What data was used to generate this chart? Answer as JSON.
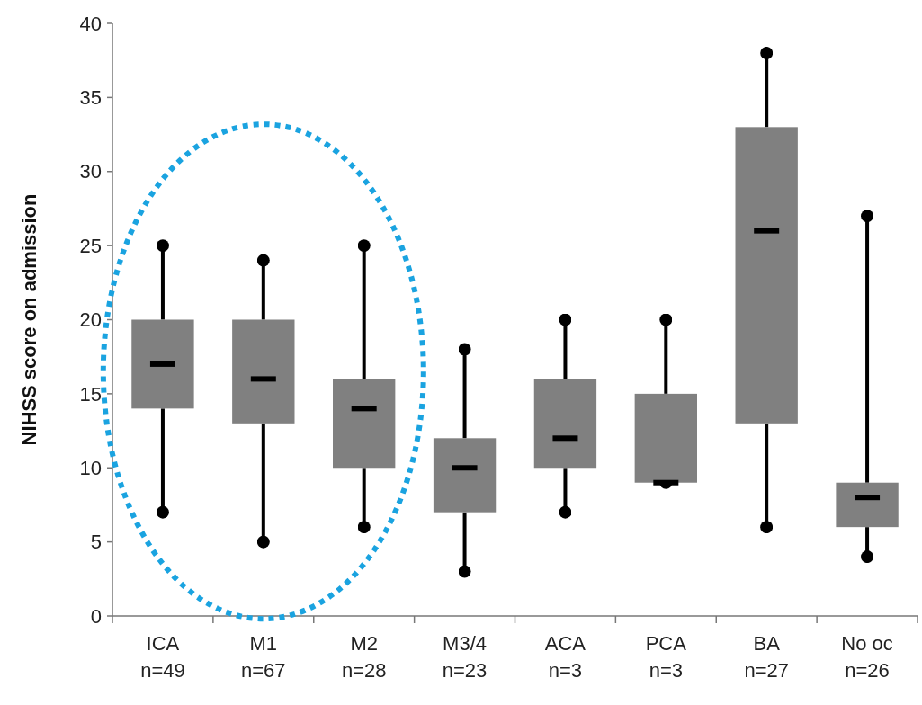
{
  "chart_data": {
    "type": "box",
    "ylabel": "NIHSS score on admission",
    "categories": [
      "ICA\nn=49",
      "M1\nn=67",
      "M2\nn=28",
      "M3/4\nn=23",
      "ACA\nn=3",
      "PCA\nn=3",
      "BA\nn=27",
      "No oc\nn=26"
    ],
    "boxes": [
      {
        "low": 7,
        "q1": 14,
        "median": 17,
        "q3": 20,
        "high": 25
      },
      {
        "low": 5,
        "q1": 13,
        "median": 16,
        "q3": 20,
        "high": 24
      },
      {
        "low": 6,
        "q1": 10,
        "median": 14,
        "q3": 16,
        "high": 25
      },
      {
        "low": 3,
        "q1": 7,
        "median": 10,
        "q3": 12,
        "high": 18
      },
      {
        "low": 7,
        "q1": 10,
        "median": 12,
        "q3": 16,
        "high": 20
      },
      {
        "low": 9,
        "q1": 9,
        "median": 9,
        "q3": 15,
        "high": 20
      },
      {
        "low": 6,
        "q1": 13,
        "median": 26,
        "q3": 33,
        "high": 38
      },
      {
        "low": 4,
        "q1": 6,
        "median": 8,
        "q3": 9,
        "high": 27
      }
    ],
    "color": "#808080",
    "ylim": [
      0,
      40
    ],
    "yticks": [
      0,
      5,
      10,
      15,
      20,
      25,
      30,
      35,
      40
    ],
    "grid": false
  }
}
